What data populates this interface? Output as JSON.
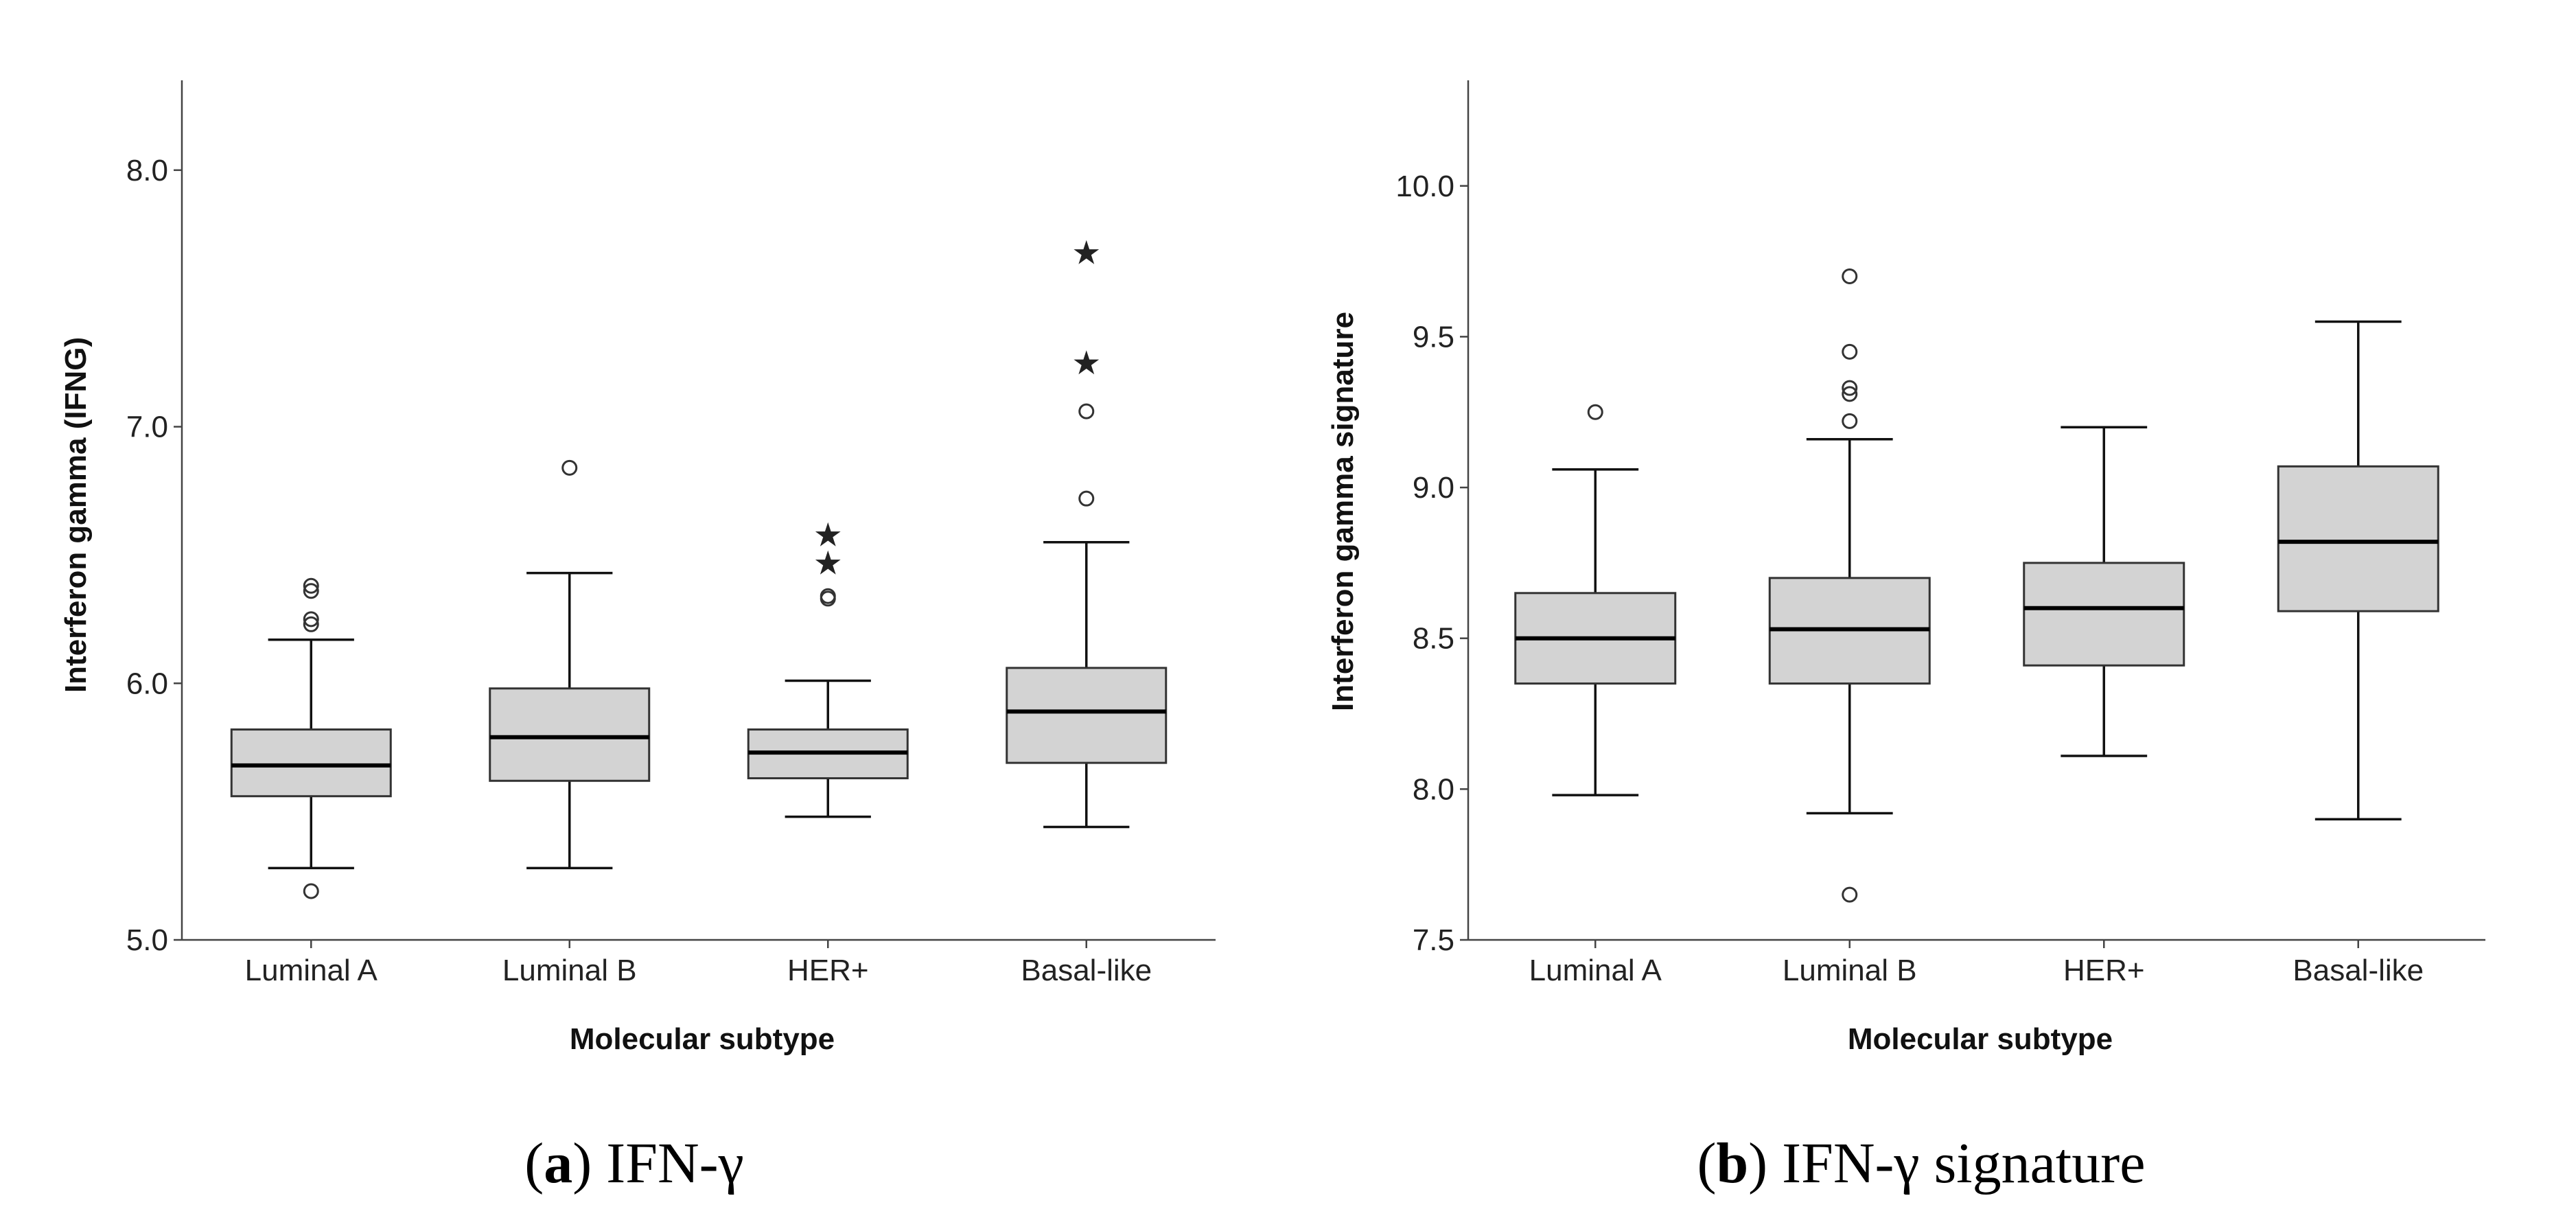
{
  "chart_data": [
    {
      "type": "boxplot",
      "caption_letter": "a",
      "caption_text": "IFN-γ",
      "xlabel": "Molecular subtype",
      "ylabel": "Interferon gamma (IFNG)",
      "ylim": [
        5.0,
        8.35
      ],
      "yticks": [
        "5.0",
        "6.0",
        "7.0",
        "8.0"
      ],
      "categories": [
        "Luminal A",
        "Luminal B",
        "HER+",
        "Basal-like"
      ],
      "boxes": [
        {
          "whisker_low": 5.28,
          "q1": 5.56,
          "median": 5.68,
          "q3": 5.82,
          "whisker_high": 6.17,
          "outliers": [
            5.19,
            6.23,
            6.25,
            6.36,
            6.38
          ],
          "extremes": []
        },
        {
          "whisker_low": 5.28,
          "q1": 5.62,
          "median": 5.79,
          "q3": 5.98,
          "whisker_high": 6.43,
          "outliers": [
            6.84
          ],
          "extremes": []
        },
        {
          "whisker_low": 5.48,
          "q1": 5.63,
          "median": 5.73,
          "q3": 5.82,
          "whisker_high": 6.01,
          "outliers": [
            6.33,
            6.34
          ],
          "extremes": [
            6.47,
            6.58
          ]
        },
        {
          "whisker_low": 5.44,
          "q1": 5.69,
          "median": 5.89,
          "q3": 6.06,
          "whisker_high": 6.55,
          "outliers": [
            6.72,
            7.06
          ],
          "extremes": [
            7.25,
            7.68
          ]
        }
      ]
    },
    {
      "type": "boxplot",
      "caption_letter": "b",
      "caption_text": "IFN-γ signature",
      "xlabel": "Molecular subtype",
      "ylabel": "Interferon gamma signature",
      "ylim": [
        7.5,
        10.35
      ],
      "yticks": [
        "7.5",
        "8.0",
        "8.5",
        "9.0",
        "9.5",
        "10.0"
      ],
      "categories": [
        "Luminal A",
        "Luminal B",
        "HER+",
        "Basal-like"
      ],
      "boxes": [
        {
          "whisker_low": 7.98,
          "q1": 8.35,
          "median": 8.5,
          "q3": 8.65,
          "whisker_high": 9.06,
          "outliers": [
            9.25
          ],
          "extremes": []
        },
        {
          "whisker_low": 7.92,
          "q1": 8.35,
          "median": 8.53,
          "q3": 8.7,
          "whisker_high": 9.16,
          "outliers": [
            7.65,
            9.22,
            9.31,
            9.33,
            9.45,
            9.7
          ],
          "extremes": []
        },
        {
          "whisker_low": 8.11,
          "q1": 8.41,
          "median": 8.6,
          "q3": 8.75,
          "whisker_high": 9.2,
          "outliers": [],
          "extremes": []
        },
        {
          "whisker_low": 7.9,
          "q1": 8.59,
          "median": 8.82,
          "q3": 9.07,
          "whisker_high": 9.55,
          "outliers": [],
          "extremes": []
        }
      ]
    }
  ]
}
